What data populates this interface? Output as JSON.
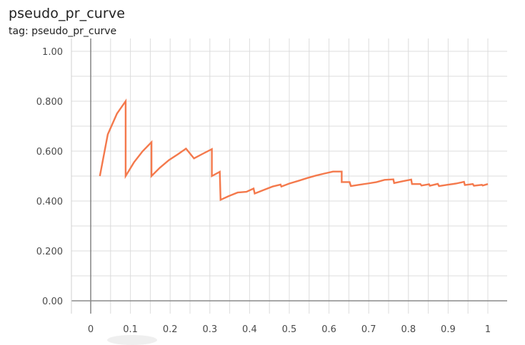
{
  "chart": {
    "title": "pseudo_pr_curve",
    "tag_line": "tag: pseudo_pr_curve"
  },
  "colors": {
    "series": "#f4794c",
    "grid": "#dcdcdc",
    "axis": "#9e9e9e",
    "zero_line": "#8a8a8a"
  },
  "chart_data": {
    "type": "line",
    "title": "pseudo_pr_curve",
    "xlabel": "",
    "ylabel": "",
    "xlim": [
      -0.05,
      1.05
    ],
    "ylim": [
      -0.05,
      1.05
    ],
    "grid": true,
    "x_ticks": [
      0,
      0.1,
      0.2,
      0.3,
      0.4,
      0.5,
      0.6,
      0.7,
      0.8,
      0.9,
      1
    ],
    "x_tick_labels": [
      "0",
      "0.1",
      "0.2",
      "0.3",
      "0.4",
      "0.5",
      "0.6",
      "0.7",
      "0.8",
      "0.9",
      "1"
    ],
    "y_ticks": [
      0,
      0.2,
      0.4,
      0.6,
      0.8,
      1.0
    ],
    "y_tick_labels": [
      "0.00",
      "0.200",
      "0.400",
      "0.600",
      "0.800",
      "1.00"
    ],
    "series": [
      {
        "x": [
          0.023,
          0.043,
          0.066,
          0.088,
          0.088,
          0.109,
          0.131,
          0.153,
          0.153,
          0.174,
          0.197,
          0.22,
          0.24,
          0.26,
          0.283,
          0.305,
          0.305,
          0.325,
          0.327,
          0.348,
          0.37,
          0.392,
          0.41,
          0.413,
          0.435,
          0.458,
          0.478,
          0.48,
          0.5,
          0.523,
          0.545,
          0.567,
          0.588,
          0.61,
          0.632,
          0.632,
          0.652,
          0.655,
          0.675,
          0.697,
          0.72,
          0.74,
          0.762,
          0.764,
          0.785,
          0.807,
          0.809,
          0.83,
          0.833,
          0.852,
          0.854,
          0.874,
          0.877,
          0.897,
          0.92,
          0.94,
          0.942,
          0.962,
          0.965,
          0.985,
          0.987,
          1.0
        ],
        "y": [
          0.5,
          0.667,
          0.75,
          0.8,
          0.5,
          0.555,
          0.6,
          0.636,
          0.5,
          0.533,
          0.564,
          0.588,
          0.61,
          0.571,
          0.59,
          0.608,
          0.5,
          0.517,
          0.405,
          0.42,
          0.434,
          0.437,
          0.45,
          0.43,
          0.444,
          0.458,
          0.466,
          0.458,
          0.47,
          0.481,
          0.492,
          0.502,
          0.51,
          0.518,
          0.518,
          0.476,
          0.476,
          0.46,
          0.465,
          0.47,
          0.476,
          0.485,
          0.487,
          0.472,
          0.479,
          0.486,
          0.468,
          0.468,
          0.462,
          0.467,
          0.461,
          0.469,
          0.46,
          0.465,
          0.47,
          0.477,
          0.464,
          0.468,
          0.461,
          0.465,
          0.462,
          0.468
        ]
      }
    ]
  }
}
